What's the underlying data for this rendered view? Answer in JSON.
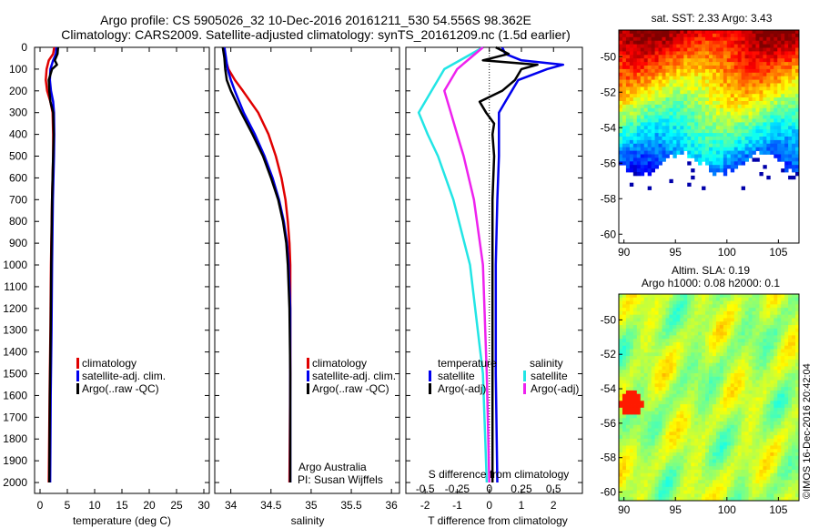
{
  "header": {
    "line1": "Argo profile: CS 5905026_32 10-Dec-2016 20161211_530 54.556S 98.362E",
    "line2": "Climatology: CARS2009. Satellite-adjusted climatology: synTS_20161209.nc (1.5d earlier)"
  },
  "colors": {
    "clim": "#e00000",
    "sat": "#0000ee",
    "argo": "#000000",
    "sat_s": "#22e5e5",
    "argo_s": "#ee22ee"
  },
  "depth_ticks": [
    0,
    100,
    200,
    300,
    400,
    500,
    600,
    700,
    800,
    900,
    1000,
    1100,
    1200,
    1300,
    1400,
    1500,
    1600,
    1700,
    1800,
    1900,
    2000
  ],
  "legend": {
    "clim": "climatology",
    "sat": "satellite-adj. clim.",
    "argo": "Argo(..raw -QC)"
  },
  "diff_legend": {
    "temp_header": "temperature",
    "sal_header": "salinity",
    "temp_sat": "satellite",
    "temp_argo": "Argo(-adj)",
    "sal_sat": "satellite",
    "sal_argo": "Argo(-adj)"
  },
  "credits": {
    "line1": "Argo Australia",
    "line2": "PI: Susan Wijffels"
  },
  "stamp": "©IMOS 16-Dec-2016 20:42:04",
  "chart_data": [
    {
      "type": "line",
      "xlabel": "temperature (deg C)",
      "xlim": [
        -1,
        31
      ],
      "xticks": [
        0,
        5,
        10,
        15,
        20,
        25,
        30
      ],
      "ylim": [
        0,
        2050
      ],
      "series": [
        {
          "name": "climatology",
          "depth": [
            0,
            30,
            60,
            100,
            150,
            200,
            250,
            300,
            400,
            500,
            700,
            1000,
            1300,
            1600,
            2000
          ],
          "values": [
            2.6,
            2.4,
            1.6,
            1.2,
            1.05,
            1.3,
            1.9,
            2.3,
            2.4,
            2.4,
            2.2,
            2.0,
            1.9,
            1.75,
            1.6
          ]
        },
        {
          "name": "satellite-adj. clim.",
          "depth": [
            0,
            30,
            60,
            100,
            150,
            200,
            250,
            300,
            400,
            500,
            700,
            1000,
            1300,
            1600,
            2000
          ],
          "values": [
            3.0,
            2.9,
            2.4,
            1.9,
            1.8,
            2.0,
            2.4,
            2.55,
            2.6,
            2.55,
            2.35,
            2.2,
            2.1,
            1.95,
            1.85
          ]
        },
        {
          "name": "Argo(..raw -QC)",
          "depth": [
            0,
            30,
            60,
            80,
            100,
            150,
            200,
            250,
            300,
            400,
            500,
            700,
            1000,
            1300,
            1600,
            2000
          ],
          "values": [
            3.3,
            3.2,
            2.7,
            3.1,
            2.2,
            1.6,
            1.7,
            1.9,
            2.4,
            2.5,
            2.4,
            2.2,
            2.05,
            1.95,
            1.8,
            1.7
          ]
        }
      ]
    },
    {
      "type": "line",
      "xlabel": "salinity",
      "xlim": [
        33.8,
        36.1
      ],
      "xticks": [
        34,
        34.5,
        35,
        35.5,
        36
      ],
      "ylim": [
        0,
        2050
      ],
      "series": [
        {
          "name": "climatology",
          "depth": [
            0,
            50,
            100,
            150,
            200,
            300,
            400,
            500,
            600,
            700,
            800,
            900,
            1000,
            1200,
            1500,
            2000
          ],
          "values": [
            33.92,
            33.93,
            33.97,
            34.05,
            34.15,
            34.34,
            34.47,
            34.56,
            34.63,
            34.68,
            34.71,
            34.73,
            34.74,
            34.74,
            34.74,
            34.73
          ]
        },
        {
          "name": "satellite-adj. clim.",
          "depth": [
            0,
            50,
            100,
            150,
            200,
            300,
            400,
            500,
            600,
            700,
            800,
            900,
            1000,
            1200,
            1500,
            2000
          ],
          "values": [
            33.92,
            33.94,
            33.96,
            34.0,
            34.05,
            34.16,
            34.3,
            34.42,
            34.52,
            34.6,
            34.66,
            34.7,
            34.72,
            34.74,
            34.74,
            34.74
          ]
        },
        {
          "name": "Argo(..raw -QC)",
          "depth": [
            0,
            50,
            100,
            150,
            200,
            300,
            400,
            500,
            600,
            700,
            800,
            900,
            1000,
            1200,
            1500,
            2000
          ],
          "values": [
            33.9,
            33.92,
            33.93,
            33.95,
            34.0,
            34.13,
            34.27,
            34.4,
            34.5,
            34.59,
            34.65,
            34.69,
            34.71,
            34.73,
            34.74,
            34.74
          ]
        }
      ]
    },
    {
      "type": "line",
      "xlabel": "T difference from climatology",
      "xlabel_top": "S difference from climatology",
      "xlim": [
        -2.6,
        2.9
      ],
      "xticks": [
        -2,
        -1,
        0,
        1,
        2
      ],
      "xticks_s": [
        -0.5,
        -0.25,
        0,
        0.25,
        0.5
      ],
      "ylim": [
        0,
        2050
      ],
      "series": [
        {
          "name": "temperature satellite",
          "depth": [
            0,
            30,
            60,
            80,
            100,
            150,
            200,
            250,
            300,
            400,
            500,
            700,
            1000,
            1500,
            2000
          ],
          "values": [
            0.4,
            0.5,
            1.0,
            2.3,
            1.8,
            0.9,
            0.7,
            0.5,
            0.3,
            0.3,
            0.3,
            0.25,
            0.2,
            0.2,
            0.25
          ]
        },
        {
          "name": "temperature Argo(-adj)",
          "depth": [
            0,
            30,
            60,
            80,
            100,
            150,
            200,
            250,
            300,
            350,
            400,
            500,
            700,
            1000,
            1500,
            2000
          ],
          "values": [
            0.2,
            0.6,
            -0.2,
            1.5,
            1.0,
            0.8,
            0.4,
            -0.3,
            -0.1,
            0.15,
            0.1,
            0.15,
            0.1,
            0.1,
            0.1,
            0.1
          ]
        },
        {
          "name": "salinity satellite",
          "depth": [
            0,
            50,
            100,
            200,
            300,
            400,
            500,
            700,
            1000,
            1500,
            2000
          ],
          "values": [
            -0.05,
            -0.2,
            -0.35,
            -0.45,
            -0.55,
            -0.48,
            -0.4,
            -0.28,
            -0.15,
            -0.05,
            -0.02
          ]
        },
        {
          "name": "salinity Argo(-adj)",
          "depth": [
            0,
            50,
            100,
            200,
            300,
            400,
            500,
            700,
            1000,
            1500,
            2000
          ],
          "values": [
            -0.05,
            -0.15,
            -0.25,
            -0.35,
            -0.3,
            -0.25,
            -0.2,
            -0.12,
            -0.05,
            -0.02,
            0.0
          ]
        }
      ]
    },
    {
      "type": "heatmap",
      "title": "sat. SST: 2.33 Argo: 3.43",
      "xlim": [
        89.5,
        107
      ],
      "ylim": [
        -60.5,
        -48.5
      ],
      "xticks": [
        90,
        95,
        100,
        105
      ],
      "yticks": [
        -50,
        -52,
        -54,
        -56,
        -58,
        -60
      ]
    },
    {
      "type": "heatmap",
      "title": "Altim. SLA: 0.19",
      "subtitle": "Argo h1000: 0.08 h2000: 0.1",
      "xlim": [
        89.5,
        107
      ],
      "ylim": [
        -60.5,
        -48.5
      ],
      "xticks": [
        90,
        95,
        100,
        105
      ],
      "yticks": [
        -50,
        -52,
        -54,
        -56,
        -58,
        -60
      ]
    }
  ]
}
